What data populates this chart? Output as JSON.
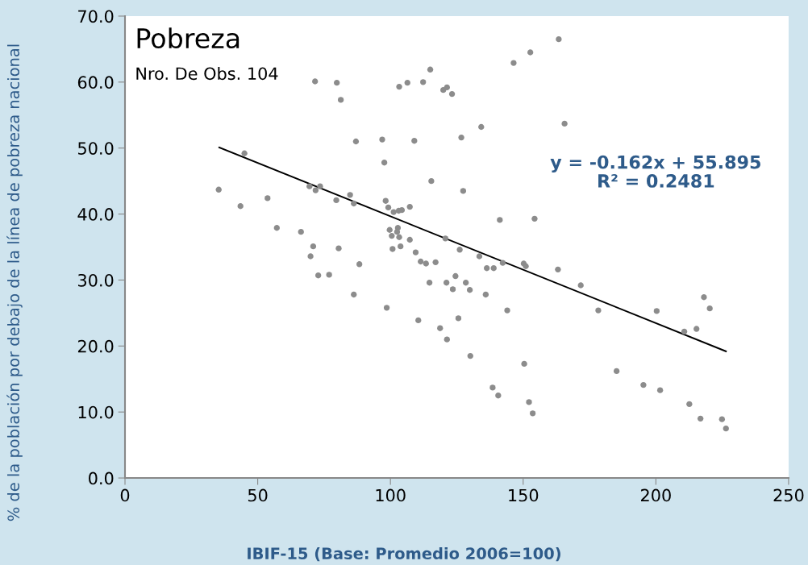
{
  "chart_data": {
    "type": "scatter",
    "title": "Pobreza",
    "subtitle": "Nro. De Obs. 104",
    "xlabel": "IBIF-15 (Base: Promedio 2006=100)",
    "ylabel": "% de la población por debajo de la línea de pobreza nacional",
    "xlim": [
      0,
      250
    ],
    "xticks": [
      0,
      50,
      100,
      150,
      200,
      250
    ],
    "ylim": [
      0,
      70
    ],
    "yticks": [
      {
        "value": 0,
        "label": "0.0"
      },
      {
        "value": 10,
        "label": "10.0"
      },
      {
        "value": 20,
        "label": "20.0"
      },
      {
        "value": 30,
        "label": "30.0"
      },
      {
        "value": 40,
        "label": "40.0"
      },
      {
        "value": 50,
        "label": "50.0"
      },
      {
        "value": 60,
        "label": "60.0"
      },
      {
        "value": 70,
        "label": "70.0"
      }
    ],
    "grid": false,
    "legend": false,
    "annotations": [
      "y = -0.162x + 55.895\nR² = 0.2481"
    ],
    "series": [
      {
        "color": "#8c8c8c",
        "marker": "circle",
        "x": [
          35.3,
          43.5,
          45.0,
          53.7,
          57.2,
          66.3,
          69.5,
          71.8,
          73.5,
          79.6,
          84.8,
          86.2,
          70.9,
          69.9,
          80.5,
          72.8,
          76.9,
          88.3,
          86.2,
          71.6,
          79.8,
          81.3,
          87.0,
          96.9,
          97.7,
          98.2,
          99.2,
          101.2,
          103.1,
          104.3,
          107.3,
          99.7,
          102.8,
          102.5,
          100.5,
          103.3,
          107.3,
          100.8,
          103.8,
          109.5,
          111.4,
          113.4,
          117.0,
          98.6,
          110.5,
          118.7,
          121.3,
          125.6,
          114.7,
          121.1,
          124.5,
          123.5,
          103.3,
          106.4,
          112.3,
          115.0,
          119.9,
          121.3,
          123.2,
          109.0,
          115.4,
          126.7,
          127.4,
          120.7,
          126.1,
          133.5,
          136.3,
          138.9,
          142.3,
          150.2,
          151.0,
          163.1,
          171.7,
          178.3,
          200.3,
          218.1,
          220.3,
          210.7,
          215.3,
          128.4,
          129.9,
          135.9,
          144.0,
          130.1,
          150.4,
          138.5,
          140.6,
          152.2,
          153.6,
          185.2,
          195.3,
          201.6,
          212.6,
          216.8,
          224.9,
          226.4,
          163.4,
          152.7,
          146.4,
          134.2,
          165.6,
          141.2,
          154.3
        ],
        "values": [
          43.7,
          41.2,
          49.2,
          42.4,
          37.9,
          37.3,
          44.2,
          43.6,
          44.2,
          42.1,
          42.9,
          41.6,
          35.1,
          33.6,
          34.8,
          30.7,
          30.8,
          32.4,
          27.8,
          60.1,
          59.9,
          57.3,
          51.0,
          51.3,
          47.8,
          42.0,
          41.0,
          40.3,
          40.5,
          40.6,
          41.1,
          37.6,
          37.9,
          37.3,
          36.7,
          36.5,
          36.1,
          34.7,
          35.1,
          34.2,
          32.8,
          32.5,
          32.7,
          25.8,
          23.9,
          22.7,
          21.0,
          24.2,
          29.6,
          29.6,
          30.6,
          28.6,
          59.3,
          59.9,
          60.0,
          61.9,
          58.8,
          59.2,
          58.2,
          51.1,
          45.0,
          51.6,
          43.5,
          36.3,
          34.6,
          33.6,
          31.8,
          31.8,
          32.6,
          32.5,
          32.1,
          31.6,
          29.2,
          25.4,
          25.3,
          27.4,
          25.7,
          22.2,
          22.6,
          29.6,
          28.5,
          27.8,
          25.4,
          18.5,
          17.3,
          13.7,
          12.5,
          11.5,
          9.8,
          16.2,
          14.1,
          13.3,
          11.2,
          9.0,
          8.9,
          7.5,
          66.5,
          64.5,
          62.9,
          53.2,
          53.7,
          39.1,
          39.3
        ]
      },
      {
        "type": "line",
        "color": "#000000",
        "marker": "none",
        "line_style": "solid",
        "x": [
          35.5,
          226.4
        ],
        "values": [
          50.1,
          19.2
        ]
      }
    ]
  }
}
